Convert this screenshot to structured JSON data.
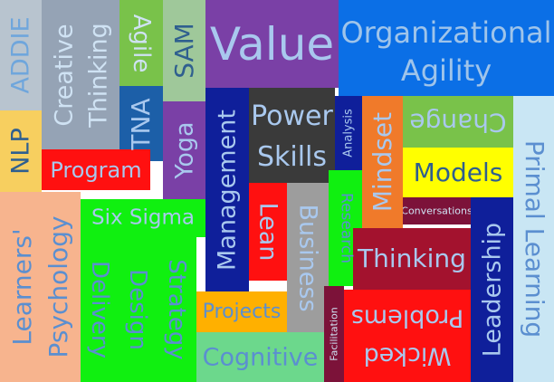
{
  "words": {
    "addie": "ADDIE",
    "creative_thinking_1": "Creative",
    "creative_thinking_2": "Thinking",
    "agile": "Agile",
    "sam": "SAM",
    "value": "Value",
    "organizational_agility_1": "Organizational",
    "organizational_agility_2": "Agility",
    "tna": "TNA",
    "nlp": "NLP",
    "program": "Program",
    "yoga": "Yoga",
    "management": "Management",
    "power_skills_1": "Power",
    "power_skills_2": "Skills",
    "analysis": "Analysis",
    "mindset": "Mindset",
    "change": "Change",
    "models": "Models",
    "primal_learning": "Primal Learning",
    "six_sigma": "Six Sigma",
    "learners_psychology_1": "Learners'",
    "learners_psychology_2": "Psychology",
    "delivery": "Delivery",
    "design": "Design",
    "strategy": "Strategy",
    "lean": "Lean",
    "business": "Business",
    "research": "Research",
    "conversations": "Conversations",
    "leadership": "Leadership",
    "thinking": "Thinking",
    "problems": "Problems",
    "wicked": "Wicked",
    "projects": "Projects",
    "cognitive": "Cognitive",
    "facilitation": "Facilitation"
  },
  "colors": {
    "light_blue": "#c9e6f4",
    "grey_blue": "#b8c4cf",
    "slate": "#95a3b5",
    "leaf_green": "#79c24a",
    "sage": "#9fc89a",
    "purple": "#7a40a6",
    "royal_blue": "#0b6fe6",
    "steel_blue": "#1c5fa8",
    "gold": "#f7cf5f",
    "red": "#ff1010",
    "navy": "#0f1f9a",
    "charcoal": "#3a3a3a",
    "orange": "#f07a2a",
    "yellow": "#ffff00",
    "peach": "#f7b48e",
    "bright_green": "#10f010",
    "pale_blue": "#a7c9ee",
    "dark_red": "#a3122e",
    "maroon": "#7c1239",
    "amber": "#ffb000",
    "teal_green": "#6cd88c",
    "grey": "#9d9d9d"
  }
}
